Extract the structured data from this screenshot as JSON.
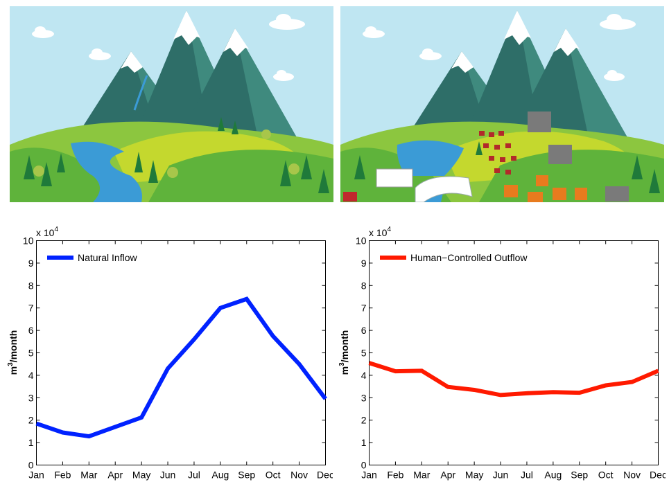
{
  "scenes": [
    {
      "id": "natural",
      "icon": "natural-landscape-illustration"
    },
    {
      "id": "human",
      "icon": "developed-landscape-illustration"
    }
  ],
  "colors": {
    "sky": "#bfe6f2",
    "mountain": "#2e6e68",
    "mountain_shade": "#3f8a7e",
    "snow": "#ffffff",
    "hill_back": "#8cc63f",
    "hill_mid": "#c4d82e",
    "hill_front": "#5fb33b",
    "water": "#3b9bd6",
    "tree": "#1f7a3a",
    "inflow": "#0022ff",
    "outflow": "#ff1a00"
  },
  "chart_data": [
    {
      "type": "line",
      "categories": [
        "Jan",
        "Feb",
        "Mar",
        "Apr",
        "May",
        "Jun",
        "Jul",
        "Aug",
        "Sep",
        "Oct",
        "Nov",
        "Dec"
      ],
      "series": [
        {
          "name": "Natural Inflow",
          "color": "#0022ff",
          "values": [
            1.85,
            1.45,
            1.28,
            1.7,
            2.12,
            4.3,
            5.6,
            7.0,
            7.4,
            5.75,
            4.5,
            2.95
          ]
        }
      ],
      "ylabel_base": "m",
      "ylabel_exp": "3",
      "ylabel_rest": "/month",
      "multiplier_base": "x 10",
      "multiplier_exp": "4",
      "yticks": [
        "0",
        "1",
        "2",
        "3",
        "4",
        "5",
        "6",
        "7",
        "8",
        "9",
        "10"
      ],
      "ylim": [
        0,
        10
      ],
      "grid": false,
      "legend_position": "top-left"
    },
    {
      "type": "line",
      "categories": [
        "Jan",
        "Feb",
        "Mar",
        "Apr",
        "May",
        "Jun",
        "Jul",
        "Aug",
        "Sep",
        "Oct",
        "Nov",
        "Dec"
      ],
      "series": [
        {
          "name": "Human−Controlled Outflow",
          "color": "#ff1a00",
          "values": [
            4.55,
            4.18,
            4.2,
            3.48,
            3.35,
            3.12,
            3.2,
            3.25,
            3.22,
            3.55,
            3.7,
            4.2
          ]
        }
      ],
      "ylabel_base": "m",
      "ylabel_exp": "3",
      "ylabel_rest": "/month",
      "multiplier_base": "x 10",
      "multiplier_exp": "4",
      "yticks": [
        "0",
        "1",
        "2",
        "3",
        "4",
        "5",
        "6",
        "7",
        "8",
        "9",
        "10"
      ],
      "ylim": [
        0,
        10
      ],
      "grid": false,
      "legend_position": "top-left"
    }
  ]
}
